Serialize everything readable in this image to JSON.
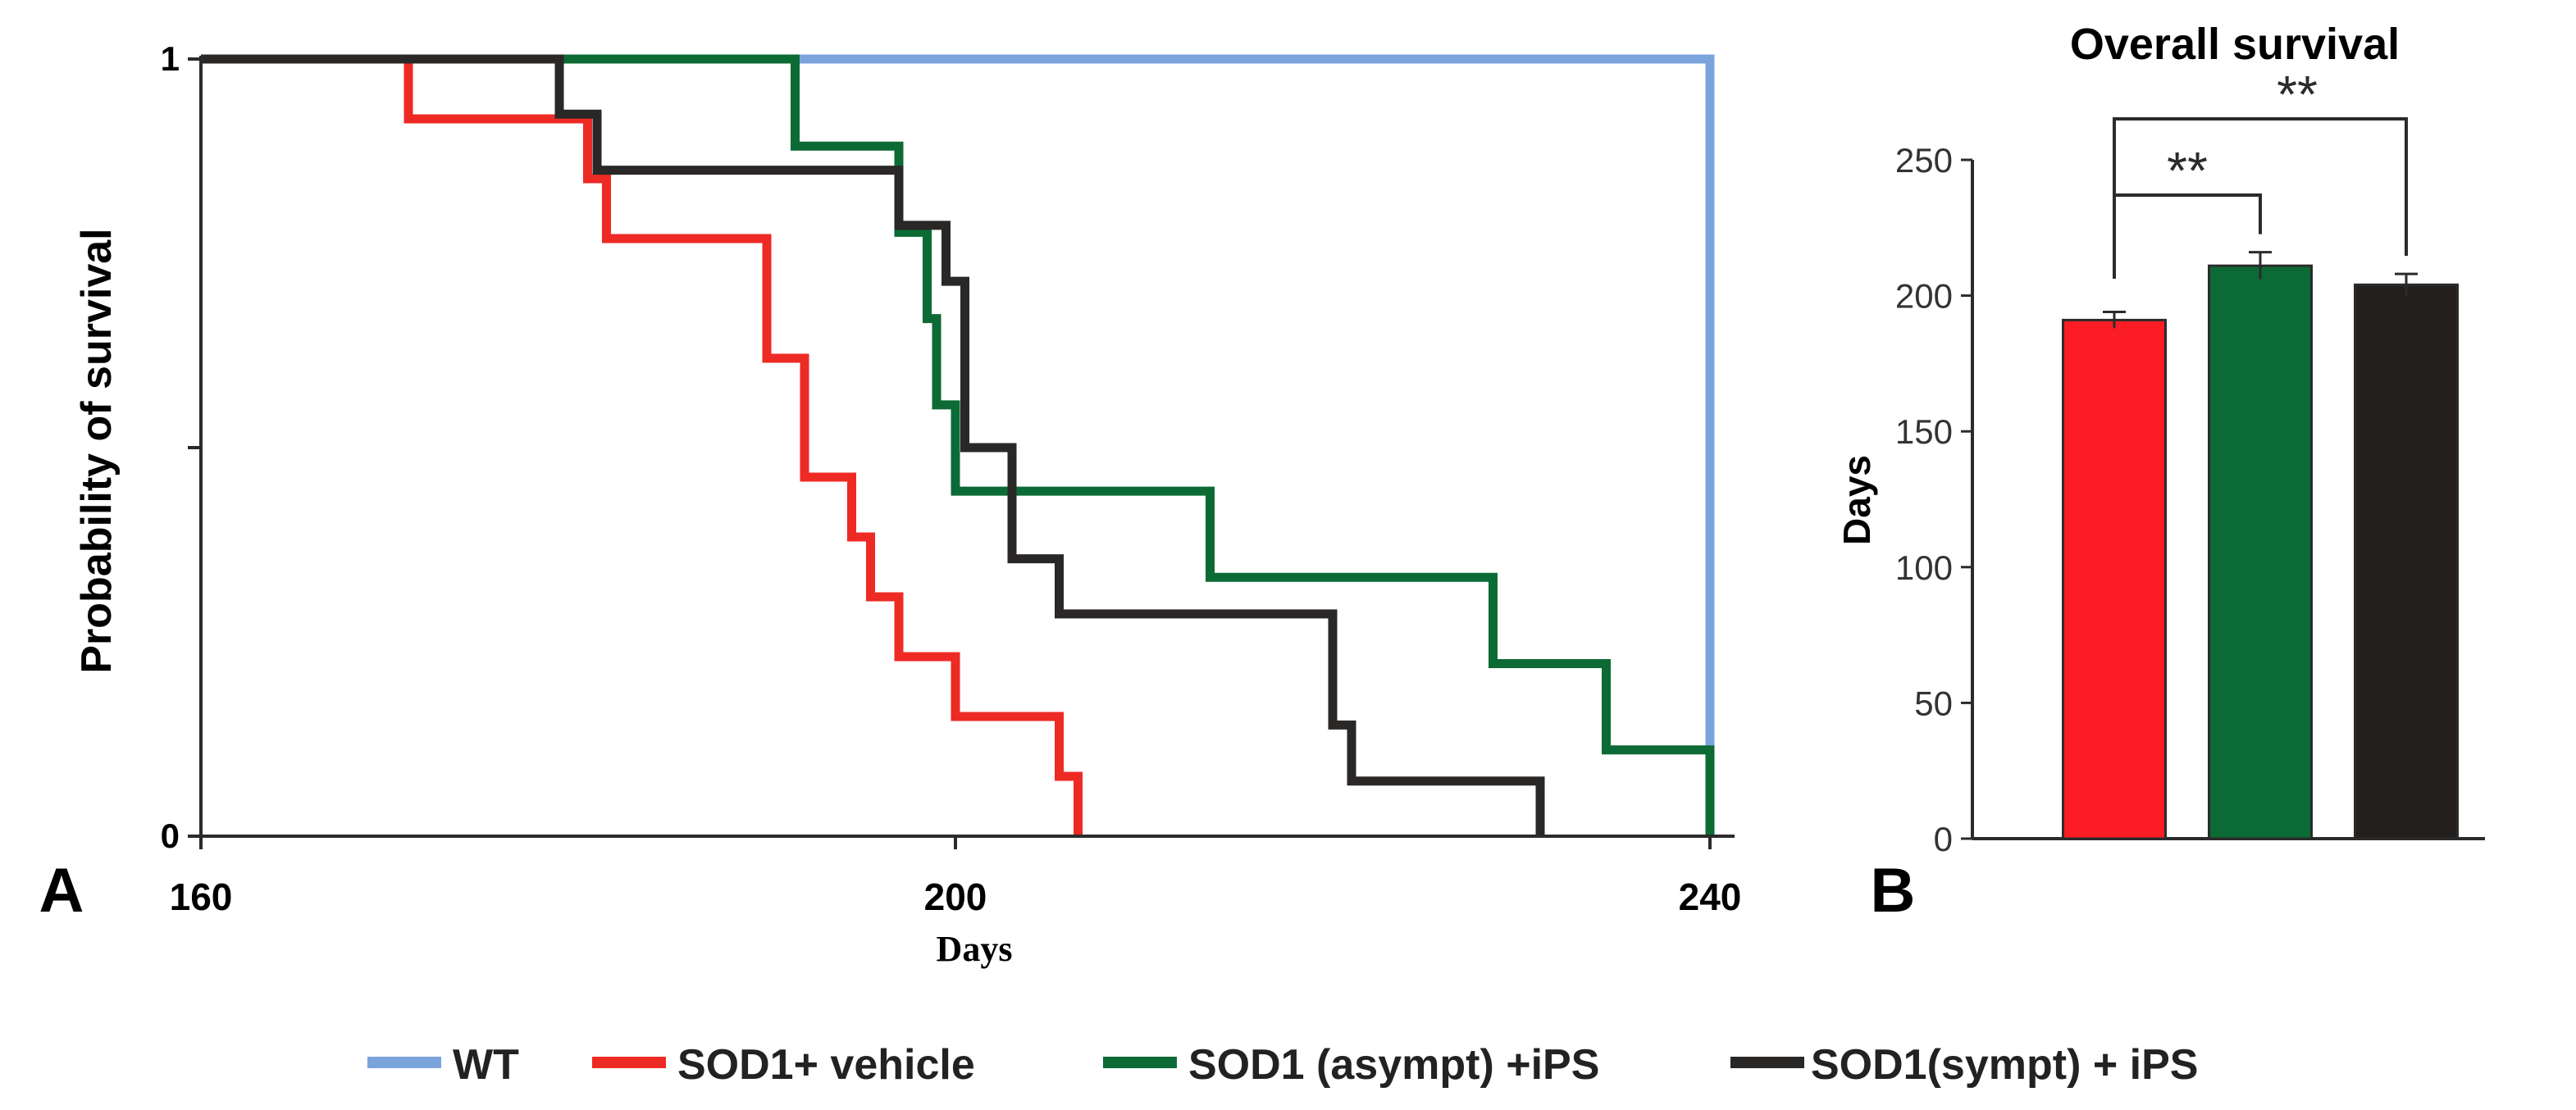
{
  "chart_data": [
    {
      "type": "line",
      "panel_label": "A",
      "title": "",
      "xlabel": "Days",
      "ylabel": "Probability of survival",
      "xlim": [
        160,
        240
      ],
      "ylim": [
        0,
        1
      ],
      "x_ticks": [
        {
          "value": 160,
          "label": "160"
        },
        {
          "value": 200,
          "label": "200"
        },
        {
          "value": 240,
          "label": "240"
        }
      ],
      "y_ticks": [
        {
          "value": 0,
          "label": "0"
        },
        {
          "value": 0.5,
          "label": ""
        },
        {
          "value": 1,
          "label": "1"
        }
      ],
      "series": [
        {
          "name": "WT",
          "color": "#7ba3dc",
          "x": [
            160,
            240,
            240
          ],
          "y": [
            1,
            1,
            0
          ]
        },
        {
          "name": "SOD1+ vehicle",
          "color": "#ee2a24",
          "x": [
            160,
            171,
            171,
            180.5,
            180.5,
            181.5,
            181.5,
            190,
            190,
            192,
            192,
            194.5,
            194.5,
            195.5,
            195.5,
            197,
            197,
            200,
            200,
            205.5,
            205.5,
            206.5,
            206.5
          ],
          "y": [
            1,
            1,
            0.923,
            0.923,
            0.846,
            0.846,
            0.769,
            0.769,
            0.615,
            0.615,
            0.462,
            0.462,
            0.385,
            0.385,
            0.308,
            0.308,
            0.231,
            0.231,
            0.154,
            0.154,
            0.077,
            0.077,
            0
          ]
        },
        {
          "name": "SOD1 (asympt) +iPS",
          "color": "#0c6a35",
          "x": [
            160,
            191.5,
            191.5,
            197,
            197,
            198.5,
            198.5,
            199,
            199,
            200,
            200,
            201.5,
            201.5,
            213.5,
            213.5,
            228.5,
            228.5,
            234.5,
            234.5,
            240,
            240
          ],
          "y": [
            1,
            1,
            0.888,
            0.888,
            0.777,
            0.777,
            0.666,
            0.666,
            0.555,
            0.555,
            0.444,
            0.444,
            0.444,
            0.444,
            0.333,
            0.333,
            0.222,
            0.222,
            0.111,
            0.111,
            0
          ]
        },
        {
          "name": "SOD1(sympt) + iPS",
          "color": "#2a2727",
          "x": [
            160,
            179,
            179,
            181,
            181,
            197,
            197,
            199.5,
            199.5,
            200.5,
            200.5,
            203,
            203,
            205.5,
            205.5,
            220,
            220,
            221,
            221,
            231,
            231
          ],
          "y": [
            1,
            1,
            0.929,
            0.929,
            0.857,
            0.857,
            0.786,
            0.786,
            0.714,
            0.714,
            0.5,
            0.5,
            0.357,
            0.357,
            0.286,
            0.286,
            0.143,
            0.143,
            0.071,
            0.071,
            0
          ]
        }
      ]
    },
    {
      "type": "bar",
      "panel_label": "B",
      "title": "Overall survival",
      "xlabel": "",
      "ylabel": "Days",
      "ylim": [
        0,
        250
      ],
      "y_ticks": [
        0,
        50,
        100,
        150,
        200,
        250
      ],
      "categories": [
        "SOD1+ vehicle",
        "SOD1 (asympt) +iPS",
        "SOD1(sympt) + iPS"
      ],
      "values": [
        191,
        211,
        204
      ],
      "errors": [
        3,
        5,
        4
      ],
      "colors": [
        "#fc1c24",
        "#0c6a35",
        "#231f1c"
      ],
      "significance": [
        {
          "from": 0,
          "to": 1,
          "label": "**"
        },
        {
          "from": 0,
          "to": 2,
          "label": "**"
        }
      ]
    }
  ],
  "legend": {
    "items": [
      {
        "label": "WT",
        "color": "#7ba3dc"
      },
      {
        "label": "SOD1+ vehicle",
        "color": "#ee2a24"
      },
      {
        "label": "SOD1 (asympt) +iPS",
        "color": "#0c6a35"
      },
      {
        "label": "SOD1(sympt) + iPS",
        "color": "#2a2727"
      }
    ]
  }
}
